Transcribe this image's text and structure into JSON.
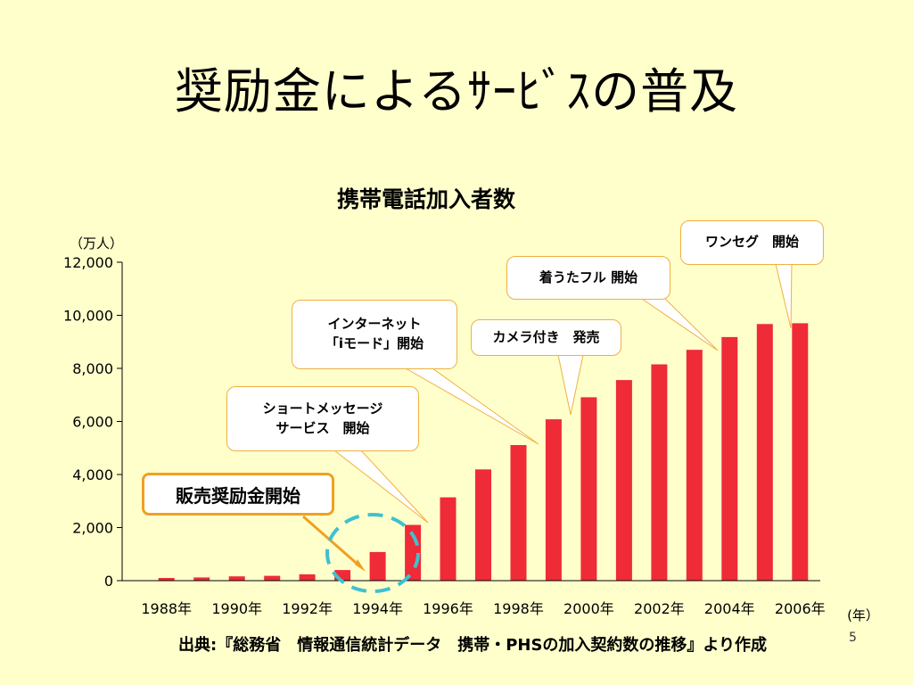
{
  "slide": {
    "title": "奨励金によるｻｰﾋﾞｽの普及",
    "source": "出典:『総務省　情報通信統計データ　携帯・PHSの加入契約数の推移』より作成",
    "page_number": "5"
  },
  "colors": {
    "background": "#ffffcc",
    "bar": "#ee2b37",
    "callout_border": "#f0b040",
    "start_border": "#f0a020",
    "highlight_circle": "#40c0d0"
  },
  "callouts": {
    "oneseg": "ワンセグ　開始",
    "chaku_uta": "着うたフル 開始",
    "camera": "カメラ付き　発売",
    "internet_line1": "インターネット",
    "internet_line2": "「iモード」開始",
    "sms_line1": "ショートメッセージ",
    "sms_line2": "サービス　開始",
    "sales_incentive": "販売奨励金開始"
  },
  "chart_data": {
    "type": "bar",
    "title": "携帯電話加入者数",
    "ylabel": "（万人）",
    "xlabel": "(年）",
    "ylim": [
      0,
      12000
    ],
    "yticks": [
      "0",
      "2,000",
      "4,000",
      "6,000",
      "8,000",
      "10,000",
      "12,000"
    ],
    "ytick_values": [
      0,
      2000,
      4000,
      6000,
      8000,
      10000,
      12000
    ],
    "categories": [
      "1988",
      "1989",
      "1990",
      "1991",
      "1992",
      "1993",
      "1994",
      "1995",
      "1996",
      "1997",
      "1998",
      "1999",
      "2000",
      "2001",
      "2002",
      "2003",
      "2004",
      "2005",
      "2006"
    ],
    "xtick_labels": [
      "1988年",
      "",
      "1990年",
      "",
      "1992年",
      "",
      "1994年",
      "",
      "1996年",
      "",
      "1998年",
      "",
      "2000年",
      "",
      "2002年",
      "",
      "2004年",
      "",
      "2006年"
    ],
    "values": [
      100,
      120,
      160,
      180,
      240,
      400,
      1080,
      2100,
      3140,
      4190,
      5110,
      6080,
      6910,
      7560,
      8150,
      8700,
      9180,
      9670,
      9700
    ],
    "grid": false,
    "legend": "none"
  }
}
